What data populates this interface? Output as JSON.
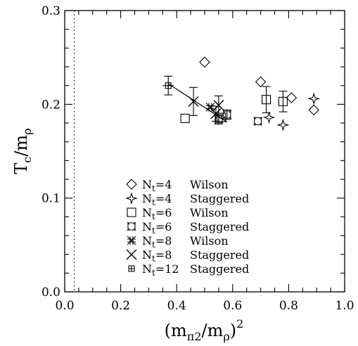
{
  "chart_data": {
    "type": "scatter",
    "xlim": [
      0.0,
      1.0
    ],
    "ylim": [
      0.0,
      0.3
    ],
    "x_ticks": [
      "0.0",
      "0.2",
      "0.4",
      "0.6",
      "0.8",
      "1.0"
    ],
    "y_ticks": [
      "0.0",
      "0.1",
      "0.2",
      "0.3"
    ],
    "xlabel": {
      "pre": "(m",
      "sub1": "π2",
      "mid": "/m",
      "sub2": "ρ",
      "post": ")",
      "sup": "2"
    },
    "ylabel": {
      "pre": "T",
      "sub1": "c",
      "mid": "/m",
      "sub2": "ρ"
    },
    "vertical_dotted_line_x": 0.034,
    "legend_placement": "bottom-center",
    "series": [
      {
        "name": "Wilson",
        "nt": "4",
        "marker": "diamond",
        "points": [
          {
            "x": 0.5,
            "y": 0.245,
            "err": 0.0
          },
          {
            "x": 0.7,
            "y": 0.224,
            "err": 0.0
          },
          {
            "x": 0.81,
            "y": 0.207,
            "err": 0.0
          },
          {
            "x": 0.89,
            "y": 0.194,
            "err": 0.0
          }
        ]
      },
      {
        "name": "Staggered",
        "nt": "4",
        "marker": "star4",
        "points": [
          {
            "x": 0.73,
            "y": 0.186,
            "err": 0.0
          },
          {
            "x": 0.78,
            "y": 0.178,
            "err": 0.0
          },
          {
            "x": 0.89,
            "y": 0.206,
            "err": 0.0
          }
        ]
      },
      {
        "name": "Wilson",
        "nt": "6",
        "marker": "square",
        "points": [
          {
            "x": 0.43,
            "y": 0.185,
            "err": 0.0
          },
          {
            "x": 0.56,
            "y": 0.186,
            "err": 0.0
          },
          {
            "x": 0.72,
            "y": 0.205,
            "err": 0.014
          },
          {
            "x": 0.78,
            "y": 0.203,
            "err": 0.011
          }
        ]
      },
      {
        "name": "Staggered",
        "nt": "6",
        "marker": "crossed-square",
        "points": [
          {
            "x": 0.55,
            "y": 0.184,
            "err": 0.005
          },
          {
            "x": 0.58,
            "y": 0.189,
            "err": 0.005
          },
          {
            "x": 0.69,
            "y": 0.182,
            "err": 0.0
          }
        ]
      },
      {
        "name": "Wilson",
        "nt": "8",
        "marker": "asterisk",
        "points": [
          {
            "x": 0.52,
            "y": 0.197,
            "err": 0.0
          }
        ]
      },
      {
        "name": "Staggered",
        "nt": "8",
        "marker": "x",
        "points": [
          {
            "x": 0.46,
            "y": 0.203,
            "err": 0.015
          },
          {
            "x": 0.54,
            "y": 0.19,
            "err": 0.008
          },
          {
            "x": 0.55,
            "y": 0.199,
            "err": 0.01
          }
        ]
      },
      {
        "name": "Staggered",
        "nt": "12",
        "marker": "plus-box",
        "points": [
          {
            "x": 0.37,
            "y": 0.22,
            "err": 0.01,
            "xerr": 0.02
          }
        ]
      }
    ],
    "fit_line": {
      "x1": 0.37,
      "y1": 0.222,
      "x2": 0.58,
      "y2": 0.181
    }
  }
}
